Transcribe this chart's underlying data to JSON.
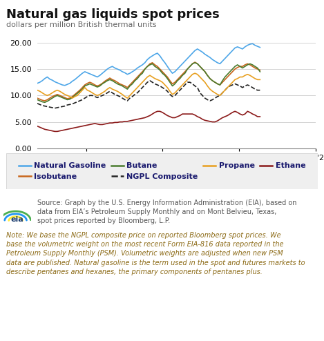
{
  "title": "Natural gas liquids spot prices",
  "subtitle": "dollars per million British thermal units",
  "ylim": [
    0.0,
    20.0
  ],
  "yticks": [
    0.0,
    5.0,
    10.0,
    15.0,
    20.0
  ],
  "background_color": "#ffffff",
  "plot_bg_color": "#ffffff",
  "grid_color": "#cccccc",
  "series": {
    "Natural Gasoline": {
      "color": "#4da6e8",
      "linewidth": 1.2,
      "linestyle": "solid",
      "values": [
        12.3,
        12.5,
        12.8,
        13.2,
        13.5,
        13.1,
        12.9,
        12.6,
        12.4,
        12.2,
        12.0,
        11.9,
        12.1,
        12.3,
        12.7,
        13.0,
        13.4,
        13.8,
        14.2,
        14.5,
        14.3,
        14.1,
        13.9,
        13.7,
        13.5,
        13.8,
        14.2,
        14.6,
        15.0,
        15.3,
        15.5,
        15.2,
        15.0,
        14.8,
        14.5,
        14.3,
        14.0,
        14.2,
        14.5,
        14.8,
        15.2,
        15.5,
        15.8,
        16.2,
        16.8,
        17.2,
        17.5,
        17.8,
        18.0,
        17.5,
        16.8,
        16.2,
        15.5,
        14.8,
        14.2,
        14.5,
        15.0,
        15.5,
        16.0,
        16.5,
        17.0,
        17.5,
        18.0,
        18.5,
        18.8,
        18.5,
        18.2,
        17.8,
        17.5,
        17.2,
        16.8,
        16.5,
        16.2,
        16.0,
        16.5,
        17.0,
        17.5,
        18.0,
        18.5,
        19.0,
        19.2,
        19.0,
        18.8,
        19.2,
        19.5,
        19.7,
        19.8,
        19.5,
        19.3,
        19.1
      ]
    },
    "Isobutane": {
      "color": "#c8651b",
      "linewidth": 1.2,
      "linestyle": "solid",
      "values": [
        9.5,
        9.3,
        9.1,
        9.0,
        9.2,
        9.5,
        9.8,
        10.0,
        10.2,
        10.0,
        9.8,
        9.6,
        9.4,
        9.5,
        9.8,
        10.2,
        10.6,
        11.0,
        11.5,
        12.0,
        12.3,
        12.5,
        12.3,
        12.0,
        11.8,
        12.0,
        12.3,
        12.7,
        13.0,
        13.3,
        13.0,
        12.8,
        12.5,
        12.2,
        12.0,
        11.8,
        11.5,
        12.0,
        12.5,
        13.0,
        13.5,
        14.0,
        14.5,
        15.0,
        15.5,
        16.0,
        16.2,
        15.8,
        15.5,
        15.0,
        14.5,
        14.0,
        13.5,
        12.8,
        12.2,
        12.5,
        13.0,
        13.5,
        14.0,
        14.5,
        15.0,
        15.5,
        16.0,
        16.3,
        16.0,
        15.5,
        15.0,
        14.5,
        13.8,
        13.2,
        12.8,
        12.5,
        12.2,
        12.0,
        12.5,
        13.0,
        13.5,
        14.0,
        14.5,
        15.0,
        15.3,
        15.5,
        15.5,
        15.8,
        16.0,
        15.8,
        15.5,
        15.2,
        15.0,
        14.8
      ]
    },
    "Butane": {
      "color": "#4a7c2f",
      "linewidth": 1.2,
      "linestyle": "solid",
      "values": [
        9.2,
        9.0,
        8.8,
        8.7,
        8.9,
        9.2,
        9.5,
        9.8,
        10.0,
        9.8,
        9.6,
        9.4,
        9.2,
        9.3,
        9.6,
        10.0,
        10.4,
        10.8,
        11.2,
        11.8,
        12.0,
        12.2,
        12.0,
        11.8,
        11.6,
        11.8,
        12.2,
        12.5,
        12.8,
        13.0,
        12.8,
        12.5,
        12.2,
        12.0,
        11.8,
        11.5,
        11.2,
        11.8,
        12.2,
        12.8,
        13.2,
        13.8,
        14.2,
        15.0,
        15.5,
        15.8,
        16.0,
        15.5,
        15.2,
        14.8,
        14.2,
        13.8,
        13.2,
        12.5,
        11.8,
        12.2,
        12.8,
        13.2,
        13.8,
        14.2,
        15.0,
        15.5,
        16.0,
        16.2,
        16.0,
        15.5,
        15.0,
        14.5,
        13.8,
        13.2,
        12.8,
        12.5,
        12.2,
        12.0,
        12.8,
        13.5,
        14.0,
        14.5,
        15.0,
        15.5,
        15.8,
        15.5,
        15.2,
        15.5,
        15.8,
        16.0,
        15.8,
        15.5,
        15.2,
        14.5
      ]
    },
    "NGPL Composite": {
      "color": "#222222",
      "linewidth": 1.2,
      "linestyle": "dashed",
      "values": [
        8.5,
        8.3,
        8.1,
        8.0,
        7.9,
        7.8,
        7.7,
        7.6,
        7.7,
        7.8,
        7.9,
        8.0,
        8.2,
        8.3,
        8.4,
        8.6,
        8.8,
        9.0,
        9.2,
        9.5,
        9.8,
        10.0,
        10.0,
        9.8,
        9.6,
        9.8,
        10.0,
        10.2,
        10.5,
        10.8,
        10.5,
        10.2,
        10.0,
        9.8,
        9.5,
        9.2,
        9.0,
        9.5,
        9.8,
        10.2,
        10.5,
        11.0,
        11.5,
        12.0,
        12.5,
        12.8,
        12.5,
        12.2,
        12.0,
        11.8,
        11.5,
        11.2,
        10.8,
        10.2,
        9.8,
        10.0,
        10.5,
        11.0,
        11.5,
        12.0,
        12.5,
        12.5,
        12.2,
        11.8,
        11.5,
        10.5,
        10.0,
        9.5,
        9.2,
        9.0,
        9.2,
        9.5,
        9.8,
        10.0,
        10.5,
        11.0,
        11.5,
        11.8,
        12.0,
        12.2,
        12.0,
        11.8,
        11.5,
        11.8,
        12.0,
        11.8,
        11.5,
        11.2,
        11.0,
        11.0
      ]
    },
    "Propane": {
      "color": "#e8a020",
      "linewidth": 1.2,
      "linestyle": "solid",
      "values": [
        11.0,
        10.8,
        10.5,
        10.2,
        10.0,
        10.2,
        10.5,
        10.8,
        11.0,
        10.8,
        10.5,
        10.2,
        10.0,
        9.8,
        9.5,
        9.8,
        10.0,
        10.5,
        11.0,
        11.5,
        11.0,
        10.8,
        10.5,
        10.2,
        10.0,
        10.2,
        10.5,
        10.8,
        11.2,
        11.5,
        11.2,
        11.0,
        10.8,
        10.5,
        10.2,
        9.8,
        9.5,
        10.0,
        10.5,
        11.0,
        11.5,
        12.0,
        12.5,
        13.0,
        13.5,
        13.8,
        13.5,
        13.2,
        13.0,
        12.8,
        12.5,
        12.0,
        11.5,
        10.8,
        10.2,
        10.5,
        11.0,
        11.5,
        12.0,
        12.5,
        13.0,
        13.5,
        14.0,
        14.2,
        14.0,
        13.5,
        13.0,
        12.5,
        11.8,
        11.2,
        10.8,
        10.5,
        10.2,
        10.0,
        10.5,
        11.0,
        11.5,
        12.0,
        12.5,
        13.0,
        13.2,
        13.5,
        13.5,
        13.8,
        14.0,
        13.8,
        13.5,
        13.2,
        13.0,
        13.0
      ]
    },
    "Ethane": {
      "color": "#8b1a1a",
      "linewidth": 1.2,
      "linestyle": "solid",
      "values": [
        4.2,
        4.0,
        3.8,
        3.6,
        3.5,
        3.4,
        3.3,
        3.2,
        3.2,
        3.3,
        3.4,
        3.5,
        3.6,
        3.7,
        3.8,
        3.9,
        4.0,
        4.1,
        4.2,
        4.3,
        4.4,
        4.5,
        4.6,
        4.7,
        4.6,
        4.5,
        4.5,
        4.6,
        4.7,
        4.8,
        4.8,
        4.9,
        4.9,
        5.0,
        5.0,
        5.1,
        5.1,
        5.2,
        5.3,
        5.4,
        5.5,
        5.6,
        5.7,
        5.8,
        6.0,
        6.2,
        6.5,
        6.8,
        7.0,
        7.0,
        6.8,
        6.5,
        6.2,
        6.0,
        5.8,
        5.8,
        6.0,
        6.2,
        6.5,
        6.5,
        6.5,
        6.5,
        6.5,
        6.3,
        6.0,
        5.8,
        5.5,
        5.3,
        5.2,
        5.1,
        5.0,
        5.0,
        5.2,
        5.5,
        5.8,
        6.0,
        6.2,
        6.5,
        6.8,
        7.0,
        6.8,
        6.5,
        6.3,
        6.5,
        7.0,
        6.8,
        6.5,
        6.3,
        6.0,
        6.0
      ]
    }
  },
  "legend_order": [
    "Natural Gasoline",
    "Isobutane",
    "Butane",
    "NGPL Composite",
    "Propane",
    "Ethane"
  ],
  "source_text": "Source: Graph by the U.S. Energy Information Administration (EIA), based on\ndata from EIA’s Petroleum Supply Monthly and on Mont Belvieu, Texas,\nspot prices reported by Bloomberg, L.P.",
  "note_text": "Note: We base the NGPL composite price on reported Bloomberg spot prices. We\nbase the volumetric weight on the most recent Form EIA-816 data reported in the\nPetroleum Supply Monthly (PSM). Volumetric weights are adjusted when new PSM\ndata are published. Natural gasoline is the term used in the spot and futures markets to\ndescribe pentanes and hexanes, the primary components of pentanes plus.",
  "note_color": "#8b6914",
  "title_fontsize": 13,
  "subtitle_fontsize": 8,
  "tick_fontsize": 8,
  "legend_fontsize": 8,
  "source_fontsize": 7,
  "note_fontsize": 7,
  "legend_label_color": "#1a1a6e"
}
